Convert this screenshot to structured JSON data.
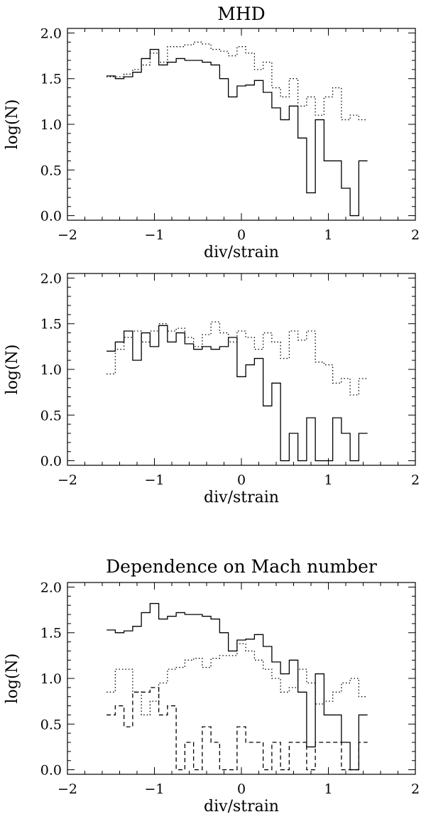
{
  "chart_data": [
    {
      "type": "line",
      "title": "MHD",
      "xlabel": "div/strain",
      "ylabel": "log(N)",
      "xlim": [
        -2,
        2
      ],
      "ylim": [
        -0.05,
        2.05
      ],
      "xticks": [
        "−2",
        "−1",
        "0",
        "1",
        "2"
      ],
      "yticks": [
        "0.0",
        "0.5",
        "1.0",
        "1.5",
        "2.0"
      ],
      "grid": false,
      "step_width": 0.1,
      "series": [
        {
          "style": "solid",
          "x": [
            -1.5,
            -1.4,
            -1.3,
            -1.2,
            -1.1,
            -1.0,
            -0.9,
            -0.8,
            -0.7,
            -0.6,
            -0.5,
            -0.4,
            -0.3,
            -0.2,
            -0.1,
            0.0,
            0.1,
            0.2,
            0.3,
            0.4,
            0.5,
            0.6,
            0.7,
            0.8,
            0.9,
            1.0,
            1.1,
            1.2,
            1.3,
            1.4
          ],
          "y": [
            1.53,
            1.5,
            1.52,
            1.57,
            1.72,
            1.82,
            1.65,
            1.68,
            1.72,
            1.7,
            1.7,
            1.68,
            1.65,
            1.5,
            1.3,
            1.42,
            1.43,
            1.48,
            1.35,
            1.18,
            1.05,
            1.2,
            0.85,
            0.25,
            1.05,
            0.6,
            0.6,
            0.3,
            0.0,
            0.6
          ]
        },
        {
          "style": "dotted",
          "x": [
            -1.5,
            -1.4,
            -1.3,
            -1.2,
            -1.1,
            -1.0,
            -0.9,
            -0.8,
            -0.7,
            -0.6,
            -0.5,
            -0.4,
            -0.3,
            -0.2,
            -0.1,
            0.0,
            0.1,
            0.2,
            0.3,
            0.4,
            0.5,
            0.6,
            0.7,
            0.8,
            0.9,
            1.0,
            1.1,
            1.2,
            1.3,
            1.4
          ],
          "y": [
            1.52,
            1.52,
            1.55,
            1.6,
            1.65,
            1.78,
            1.68,
            1.85,
            1.85,
            1.87,
            1.9,
            1.88,
            1.82,
            1.8,
            1.75,
            1.85,
            1.78,
            1.6,
            1.68,
            1.4,
            1.3,
            1.5,
            1.2,
            1.3,
            1.1,
            1.3,
            1.4,
            1.05,
            1.1,
            1.05
          ]
        }
      ]
    },
    {
      "type": "line",
      "title": "",
      "xlabel": "div/strain",
      "ylabel": "log(N)",
      "xlim": [
        -2,
        2
      ],
      "ylim": [
        -0.05,
        2.05
      ],
      "xticks": [
        "−2",
        "−1",
        "0",
        "1",
        "2"
      ],
      "yticks": [
        "0.0",
        "0.5",
        "1.0",
        "1.5",
        "2.0"
      ],
      "grid": false,
      "step_width": 0.1,
      "series": [
        {
          "style": "solid",
          "x": [
            -1.5,
            -1.4,
            -1.3,
            -1.2,
            -1.1,
            -1.0,
            -0.9,
            -0.8,
            -0.7,
            -0.6,
            -0.5,
            -0.4,
            -0.3,
            -0.2,
            -0.1,
            0.0,
            0.1,
            0.2,
            0.3,
            0.4,
            0.5,
            0.6,
            0.7,
            0.8,
            0.9,
            1.0,
            1.1,
            1.2,
            1.3,
            1.4
          ],
          "y": [
            1.2,
            1.3,
            1.42,
            1.1,
            1.4,
            1.25,
            1.48,
            1.3,
            1.4,
            1.28,
            1.22,
            1.25,
            1.22,
            1.25,
            1.35,
            0.92,
            1.05,
            1.12,
            0.6,
            0.85,
            0.0,
            0.3,
            0.0,
            0.47,
            0.0,
            0.0,
            0.47,
            0.3,
            0.0,
            0.3
          ]
        },
        {
          "style": "dotted",
          "x": [
            -1.5,
            -1.4,
            -1.3,
            -1.2,
            -1.1,
            -1.0,
            -0.9,
            -0.8,
            -0.7,
            -0.6,
            -0.5,
            -0.4,
            -0.3,
            -0.2,
            -0.1,
            0.0,
            0.1,
            0.2,
            0.3,
            0.4,
            0.5,
            0.6,
            0.7,
            0.8,
            0.9,
            1.0,
            1.1,
            1.2,
            1.3,
            1.4
          ],
          "y": [
            0.95,
            1.22,
            1.35,
            1.42,
            1.3,
            1.42,
            1.5,
            1.42,
            1.45,
            1.35,
            1.25,
            1.38,
            1.52,
            1.4,
            1.3,
            1.42,
            1.35,
            1.22,
            1.4,
            1.3,
            1.12,
            1.42,
            1.32,
            1.42,
            1.08,
            1.05,
            0.85,
            0.9,
            0.72,
            0.9
          ]
        }
      ]
    },
    {
      "type": "line",
      "title": "Dependence on Mach number",
      "xlabel": "div/strain",
      "ylabel": "log(N)",
      "xlim": [
        -2,
        2
      ],
      "ylim": [
        -0.05,
        2.05
      ],
      "xticks": [
        "−2",
        "−1",
        "0",
        "1",
        "2"
      ],
      "yticks": [
        "0.0",
        "0.5",
        "1.0",
        "1.5",
        "2.0"
      ],
      "grid": false,
      "step_width": 0.1,
      "series": [
        {
          "style": "solid",
          "x": [
            -1.5,
            -1.4,
            -1.3,
            -1.2,
            -1.1,
            -1.0,
            -0.9,
            -0.8,
            -0.7,
            -0.6,
            -0.5,
            -0.4,
            -0.3,
            -0.2,
            -0.1,
            0.0,
            0.1,
            0.2,
            0.3,
            0.4,
            0.5,
            0.6,
            0.7,
            0.8,
            0.9,
            1.0,
            1.1,
            1.2,
            1.3,
            1.4
          ],
          "y": [
            1.53,
            1.5,
            1.52,
            1.57,
            1.72,
            1.82,
            1.65,
            1.68,
            1.72,
            1.7,
            1.7,
            1.68,
            1.65,
            1.5,
            1.3,
            1.42,
            1.43,
            1.48,
            1.35,
            1.18,
            1.05,
            1.2,
            0.85,
            0.25,
            1.05,
            0.6,
            0.6,
            0.3,
            0.0,
            0.6
          ]
        },
        {
          "style": "dotted",
          "x": [
            -1.5,
            -1.4,
            -1.3,
            -1.2,
            -1.1,
            -1.0,
            -0.9,
            -0.8,
            -0.7,
            -0.6,
            -0.5,
            -0.4,
            -0.3,
            -0.2,
            -0.1,
            0.0,
            0.1,
            0.2,
            0.3,
            0.4,
            0.5,
            0.6,
            0.7,
            0.8,
            0.9,
            1.0,
            1.1,
            1.2,
            1.3,
            1.4
          ],
          "y": [
            0.85,
            1.1,
            1.1,
            0.85,
            0.6,
            0.75,
            0.95,
            1.1,
            1.12,
            1.2,
            1.22,
            1.12,
            1.22,
            1.25,
            1.25,
            1.38,
            1.3,
            1.2,
            1.1,
            1.0,
            0.85,
            0.9,
            1.1,
            0.95,
            0.72,
            0.75,
            0.85,
            0.95,
            1.0,
            0.8
          ]
        },
        {
          "style": "dashed",
          "x": [
            -1.5,
            -1.4,
            -1.3,
            -1.2,
            -1.1,
            -1.0,
            -0.9,
            -0.8,
            -0.7,
            -0.6,
            -0.5,
            -0.4,
            -0.3,
            -0.2,
            -0.1,
            0.0,
            0.1,
            0.2,
            0.3,
            0.4,
            0.5,
            0.6,
            0.7,
            0.8,
            0.9,
            1.0,
            1.1,
            1.2,
            1.3,
            1.4
          ],
          "y": [
            0.6,
            0.7,
            0.47,
            0.85,
            0.85,
            0.9,
            0.6,
            0.7,
            0.0,
            0.3,
            0.0,
            0.47,
            0.3,
            0.0,
            0.0,
            0.47,
            0.3,
            0.3,
            0.0,
            0.3,
            0.0,
            0.3,
            0.3,
            0.0,
            0.3,
            0.3,
            0.3,
            0.0,
            0.0,
            0.3
          ]
        }
      ]
    }
  ]
}
